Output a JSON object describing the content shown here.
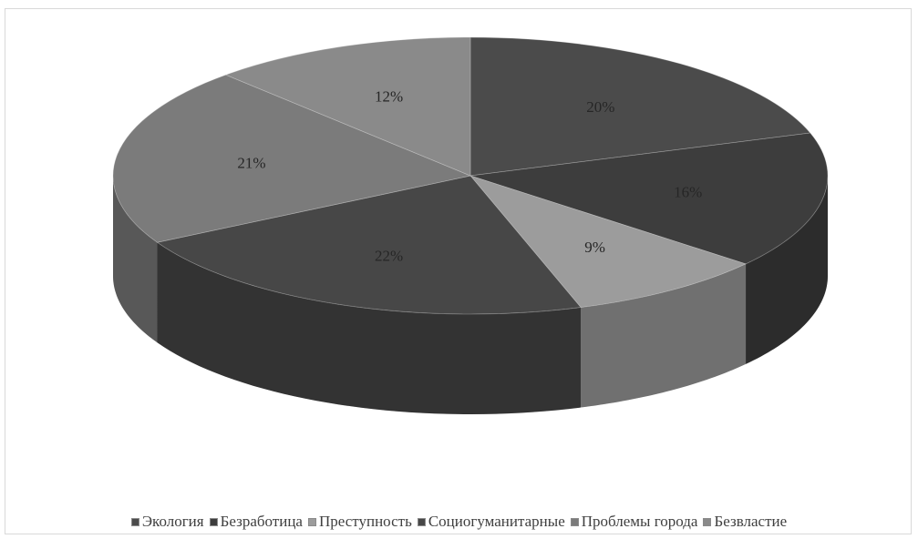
{
  "chart_data": {
    "type": "pie",
    "title": "",
    "categories": [
      "Экология",
      "Безработица",
      "Преступность",
      "Социогуманитарные",
      "Проблемы города",
      "Безвластие"
    ],
    "values": [
      20,
      16,
      9,
      22,
      21,
      12
    ],
    "labels": [
      "20%",
      "16%",
      "9%",
      "22%",
      "21%",
      "12%"
    ],
    "colors": [
      "#4b4b4b",
      "#3d3d3d",
      "#9c9c9c",
      "#474747",
      "#7b7b7b",
      "#8a8a8a"
    ],
    "style": "3d",
    "legend_position": "bottom"
  }
}
